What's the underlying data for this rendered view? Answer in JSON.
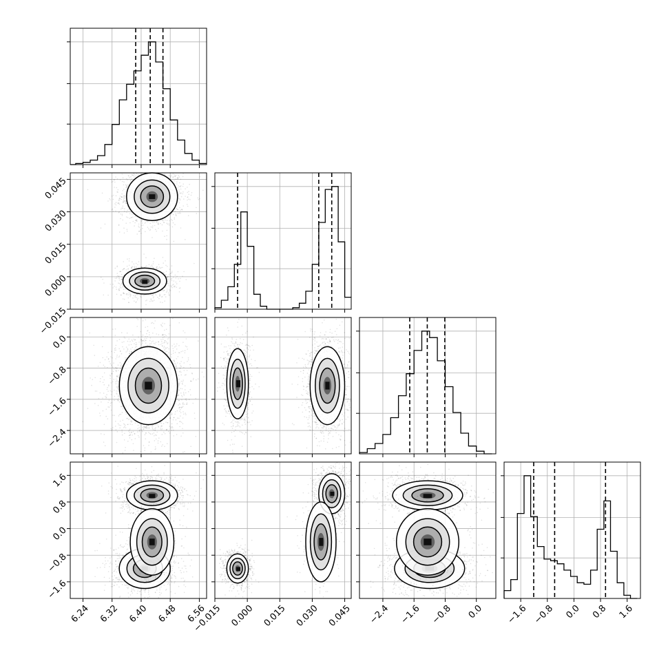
{
  "chart_data": {
    "type": "corner",
    "parameters": 4,
    "grid": true,
    "colors": {
      "frame": "#000000",
      "grid": "#b0b0b0",
      "points": "#000000",
      "contour": "#000000",
      "quantile_line": "#000000"
    },
    "axes_ranges": [
      [
        6.205,
        6.58
      ],
      [
        -0.015,
        0.048
      ],
      [
        -3.0,
        0.5
      ],
      [
        -2.1,
        2.0
      ]
    ],
    "tick_labels": [
      [
        "6.24",
        "6.32",
        "6.40",
        "6.48",
        "6.56"
      ],
      [
        "−0.015",
        "0.000",
        "0.015",
        "0.030",
        "0.045"
      ],
      [
        "−2.4",
        "−1.6",
        "−0.8",
        "0.0"
      ],
      [
        "−1.6",
        "−0.8",
        "0.0",
        "0.8",
        "1.6"
      ]
    ],
    "tick_values": [
      [
        6.24,
        6.32,
        6.4,
        6.48,
        6.56
      ],
      [
        -0.015,
        0.0,
        0.015,
        0.03,
        0.045
      ],
      [
        -2.4,
        -1.6,
        -0.8,
        0.0
      ],
      [
        -1.6,
        -0.8,
        0.0,
        0.8,
        1.6
      ]
    ],
    "y_tick_labels": {
      "row1": [
        "−0.015",
        "0.000",
        "0.015",
        "0.030",
        "0.045"
      ],
      "row2": [
        "−2.4",
        "−1.6",
        "−0.8",
        "0.0"
      ],
      "row3": [
        "−1.6",
        "−0.8",
        "0.0",
        "0.8",
        "1.6"
      ]
    },
    "y_tick_values": {
      "row1": [
        -0.015,
        0.0,
        0.015,
        0.03,
        0.045
      ],
      "row2": [
        -2.4,
        -1.6,
        -0.8,
        0.0
      ],
      "row3": [
        -1.6,
        -0.8,
        0.0,
        0.8,
        1.6
      ]
    },
    "histograms": [
      {
        "param": 0,
        "bins": [
          6.2,
          6.22,
          6.24,
          6.26,
          6.28,
          6.3,
          6.32,
          6.34,
          6.36,
          6.38,
          6.4,
          6.42,
          6.44,
          6.46,
          6.48,
          6.5,
          6.52,
          6.54,
          6.56,
          6.58
        ],
        "counts": [
          0,
          1,
          2,
          4,
          8,
          18,
          36,
          58,
          72,
          84,
          98,
          110,
          92,
          68,
          40,
          22,
          10,
          4,
          1
        ],
        "quantiles": [
          6.385,
          6.425,
          6.46
        ]
      },
      {
        "param": 1,
        "bins": [
          -0.015,
          -0.012,
          -0.009,
          -0.006,
          -0.003,
          0.0,
          0.003,
          0.006,
          0.009,
          0.012,
          0.015,
          0.018,
          0.021,
          0.024,
          0.027,
          0.03,
          0.033,
          0.036,
          0.039,
          0.042,
          0.045,
          0.048
        ],
        "counts": [
          1,
          6,
          15,
          30,
          65,
          42,
          10,
          2,
          0,
          0,
          0,
          0,
          1,
          4,
          12,
          30,
          58,
          80,
          82,
          45,
          8
        ],
        "quantiles": [
          -0.0045,
          0.033,
          0.039
        ]
      },
      {
        "param": 2,
        "bins": [
          -3.0,
          -2.8,
          -2.6,
          -2.4,
          -2.2,
          -2.0,
          -1.8,
          -1.6,
          -1.4,
          -1.2,
          -1.0,
          -0.8,
          -0.6,
          -0.4,
          -0.2,
          0.0,
          0.2,
          0.4
        ],
        "counts": [
          1,
          4,
          8,
          15,
          28,
          45,
          62,
          80,
          95,
          90,
          72,
          52,
          32,
          16,
          6,
          2,
          0
        ],
        "quantiles": [
          -1.71,
          -1.26,
          -0.81
        ]
      },
      {
        "param": 3,
        "bins": [
          -2.1,
          -1.9,
          -1.7,
          -1.5,
          -1.3,
          -1.1,
          -0.9,
          -0.7,
          -0.5,
          -0.3,
          -0.1,
          0.1,
          0.3,
          0.5,
          0.7,
          0.9,
          1.1,
          1.3,
          1.5,
          1.7,
          1.9
        ],
        "counts": [
          5,
          12,
          54,
          78,
          52,
          33,
          25,
          24,
          22,
          18,
          14,
          10,
          9,
          18,
          44,
          62,
          30,
          10,
          2,
          0
        ],
        "quantiles": [
          -1.21,
          -0.58,
          0.95
        ]
      }
    ],
    "pairs": [
      {
        "x": 0,
        "y": 1,
        "clusters": [
          {
            "center": [
              6.43,
              0.037
            ],
            "spread": [
              0.035,
              0.0055
            ],
            "weight": 0.6
          },
          {
            "center": [
              6.41,
              -0.002
            ],
            "spread": [
              0.03,
              0.003
            ],
            "weight": 0.4
          }
        ]
      },
      {
        "x": 0,
        "y": 2,
        "clusters": [
          {
            "center": [
              6.42,
              -1.25
            ],
            "spread": [
              0.04,
              0.5
            ],
            "weight": 1.0
          }
        ]
      },
      {
        "x": 1,
        "y": 2,
        "clusters": [
          {
            "center": [
              -0.0045,
              -1.2
            ],
            "spread": [
              0.0025,
              0.45
            ],
            "weight": 0.4
          },
          {
            "center": [
              0.037,
              -1.25
            ],
            "spread": [
              0.004,
              0.5
            ],
            "weight": 0.6
          }
        ]
      },
      {
        "x": 0,
        "y": 3,
        "clusters": [
          {
            "center": [
              6.43,
              1.0
            ],
            "spread": [
              0.035,
              0.22
            ],
            "weight": 0.45
          },
          {
            "center": [
              6.41,
              -1.2
            ],
            "spread": [
              0.035,
              0.3
            ],
            "weight": 0.4
          },
          {
            "center": [
              6.43,
              -0.4
            ],
            "spread": [
              0.03,
              0.5
            ],
            "weight": 0.15
          }
        ]
      },
      {
        "x": 1,
        "y": 3,
        "clusters": [
          {
            "center": [
              0.039,
              1.05
            ],
            "spread": [
              0.003,
              0.3
            ],
            "weight": 0.45
          },
          {
            "center": [
              -0.0045,
              -1.2
            ],
            "spread": [
              0.0025,
              0.22
            ],
            "weight": 0.4
          },
          {
            "center": [
              0.034,
              -0.4
            ],
            "spread": [
              0.0035,
              0.6
            ],
            "weight": 0.15
          }
        ]
      },
      {
        "x": 2,
        "y": 3,
        "clusters": [
          {
            "center": [
              -1.25,
              1.0
            ],
            "spread": [
              0.45,
              0.22
            ],
            "weight": 0.45
          },
          {
            "center": [
              -1.2,
              -1.2
            ],
            "spread": [
              0.45,
              0.3
            ],
            "weight": 0.4
          },
          {
            "center": [
              -1.25,
              -0.4
            ],
            "spread": [
              0.4,
              0.5
            ],
            "weight": 0.15
          }
        ]
      }
    ]
  }
}
